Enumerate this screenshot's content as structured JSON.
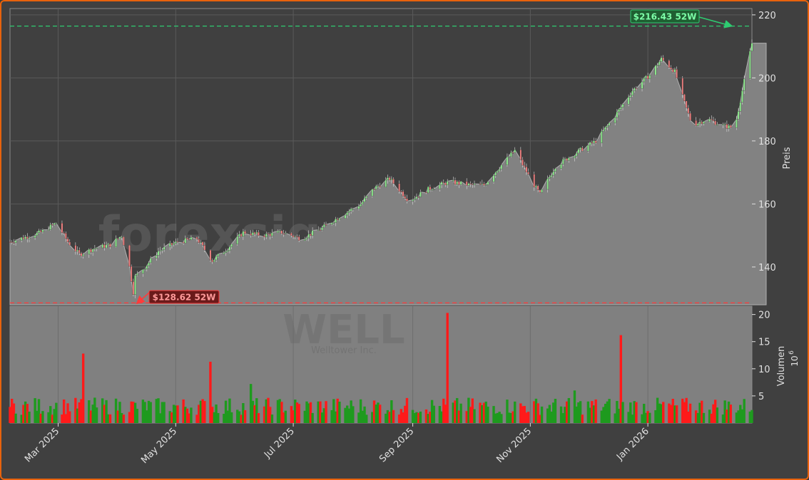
{
  "colors": {
    "frame": "#e8620c",
    "background": "#404040",
    "plot_area": "#404040",
    "area_fill": "#828282",
    "up_candle": "#90ee90",
    "down_candle": "#f08080",
    "vol_up": "#1e9a1e",
    "vol_down": "#ff1a1a",
    "high_line": "#2ecc71",
    "low_line": "#ff3b3b",
    "text": "#e0e0e0",
    "grid": "#5a5a5a"
  },
  "watermark": {
    "site": "forexsignale.trade",
    "ticker": "WELL",
    "company": "Welltower Inc."
  },
  "chart_data": [
    {
      "type": "candlestick",
      "ylabel": "Preis",
      "ylim": [
        128,
        222
      ],
      "y_ticks": [
        140,
        160,
        180,
        200,
        220
      ],
      "x_tick_labels": [
        "Mar 2025",
        "May 2025",
        "Jul 2025",
        "Sep 2025",
        "Nov 2025",
        "Jan 2026"
      ],
      "x_tick_dates": [
        "2025-03-01",
        "2025-05-01",
        "2025-07-01",
        "2025-09-01",
        "2025-11-01",
        "2026-01-01"
      ],
      "x_range": [
        "2025-02-04",
        "2026-02-24"
      ],
      "grid": true,
      "price_keypoints": [
        [
          "2025-02-04",
          148
        ],
        [
          "2025-02-20",
          151
        ],
        [
          "2025-02-28",
          154
        ],
        [
          "2025-03-06",
          148
        ],
        [
          "2025-03-12",
          144
        ],
        [
          "2025-03-20",
          146
        ],
        [
          "2025-03-28",
          147
        ],
        [
          "2025-04-03",
          150
        ],
        [
          "2025-04-07",
          140
        ],
        [
          "2025-04-09",
          132
        ],
        [
          "2025-04-10",
          137
        ],
        [
          "2025-04-15",
          140
        ],
        [
          "2025-04-22",
          145
        ],
        [
          "2025-05-02",
          148
        ],
        [
          "2025-05-12",
          149
        ],
        [
          "2025-05-20",
          142
        ],
        [
          "2025-05-28",
          146
        ],
        [
          "2025-06-05",
          151
        ],
        [
          "2025-06-15",
          150
        ],
        [
          "2025-06-25",
          151
        ],
        [
          "2025-07-05",
          149
        ],
        [
          "2025-07-15",
          152
        ],
        [
          "2025-07-25",
          156
        ],
        [
          "2025-08-05",
          160
        ],
        [
          "2025-08-12",
          165
        ],
        [
          "2025-08-20",
          168
        ],
        [
          "2025-08-30",
          161
        ],
        [
          "2025-09-10",
          165
        ],
        [
          "2025-09-20",
          167
        ],
        [
          "2025-10-01",
          166
        ],
        [
          "2025-10-08",
          166
        ],
        [
          "2025-10-15",
          171
        ],
        [
          "2025-10-24",
          177
        ],
        [
          "2025-11-01",
          168
        ],
        [
          "2025-11-06",
          163
        ],
        [
          "2025-11-14",
          172
        ],
        [
          "2025-11-24",
          176
        ],
        [
          "2025-12-05",
          180
        ],
        [
          "2025-12-15",
          188
        ],
        [
          "2025-12-24",
          196
        ],
        [
          "2026-01-02",
          201
        ],
        [
          "2026-01-08",
          206
        ],
        [
          "2026-01-15",
          202
        ],
        [
          "2026-01-20",
          192
        ],
        [
          "2026-01-24",
          185
        ],
        [
          "2026-02-01",
          187
        ],
        [
          "2026-02-08",
          185
        ],
        [
          "2026-02-15",
          184
        ],
        [
          "2026-02-24",
          211
        ]
      ],
      "annotations": [
        {
          "label": "$216.43 52W",
          "value": 216.43,
          "kind": "52-week high"
        },
        {
          "label": "$128.62 52W",
          "value": 128.62,
          "kind": "52-week low"
        }
      ]
    },
    {
      "type": "bar",
      "ylabel": "Volumen",
      "y_scale_label": "10",
      "y_scale_exp": "6",
      "ylim": [
        0,
        21
      ],
      "y_ticks": [
        5,
        10,
        15,
        20
      ],
      "spikes": [
        [
          "2025-03-15",
          12.8,
          "down"
        ],
        [
          "2025-05-20",
          11.3,
          "down"
        ],
        [
          "2025-09-20",
          20.3,
          "down"
        ],
        [
          "2025-12-19",
          16.2,
          "down"
        ],
        [
          "2025-11-24",
          6.0,
          "up"
        ],
        [
          "2025-06-10",
          7.2,
          "up"
        ]
      ]
    }
  ]
}
